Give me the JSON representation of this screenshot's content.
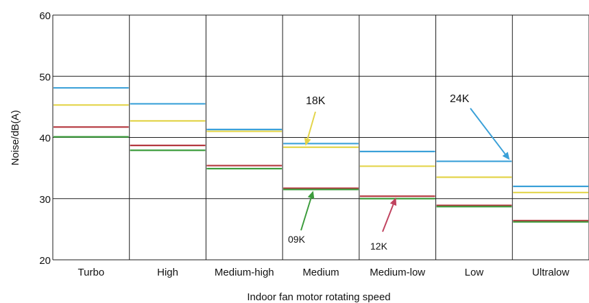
{
  "chart_data": {
    "type": "line",
    "title": "",
    "xlabel": "Indoor fan motor rotating speed",
    "ylabel": "Noise/dB(A)",
    "ylim": [
      20,
      60
    ],
    "yticks": [
      20,
      30,
      40,
      50,
      60
    ],
    "grid": true,
    "categories": [
      "Turbo",
      "High",
      "Medium-high",
      "Medium",
      "Medium-low",
      "Low",
      "Ultralow"
    ],
    "series": [
      {
        "name": "24K",
        "color": "#3aa0d8",
        "values": [
          48.1,
          45.5,
          41.3,
          39.0,
          37.7,
          36.1,
          32.0
        ]
      },
      {
        "name": "18K",
        "color": "#e3d44a",
        "values": [
          45.3,
          42.7,
          41.0,
          38.4,
          35.3,
          33.5,
          31.0
        ]
      },
      {
        "name": "12K",
        "color": "#b3353c",
        "values": [
          41.7,
          38.7,
          35.4,
          31.7,
          30.4,
          28.9,
          26.4
        ]
      },
      {
        "name": "09K",
        "color": "#3c9c3c",
        "values": [
          40.1,
          37.9,
          34.9,
          31.5,
          30.0,
          28.7,
          26.2
        ]
      }
    ],
    "annotations": [
      {
        "label": "18K",
        "series": "18K",
        "category": "Medium",
        "color": "#e3d44a"
      },
      {
        "label": "24K",
        "series": "24K",
        "category": "Low",
        "color": "#3aa0d8"
      },
      {
        "label": "09K",
        "series": "09K",
        "category": "Medium",
        "color": "#3c9c3c"
      },
      {
        "label": "12K",
        "series": "12K",
        "category": "Medium-low",
        "color": "#c0435f"
      }
    ]
  }
}
